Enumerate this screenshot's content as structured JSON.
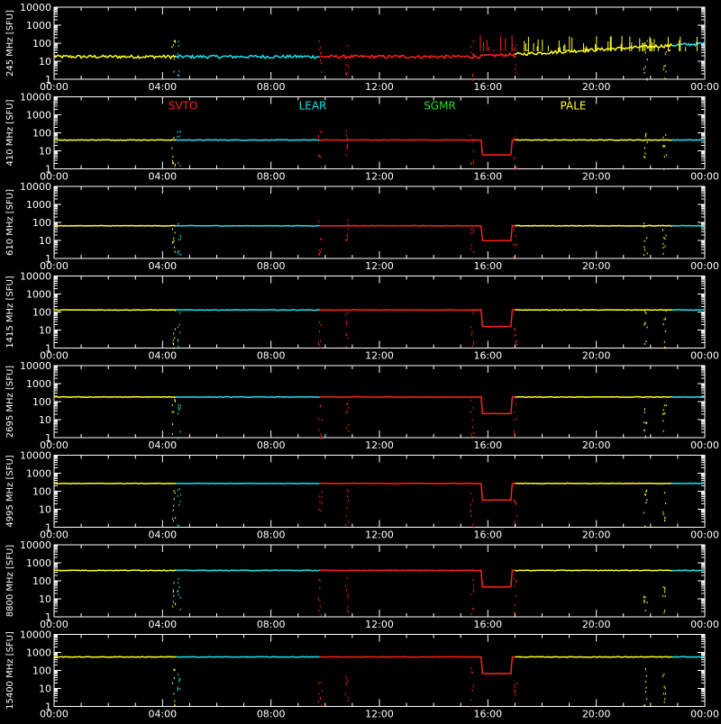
{
  "chart_data": {
    "type": "scatter",
    "y_scale": "log",
    "ylim": [
      1,
      10000
    ],
    "xlim_hours": [
      0,
      24
    ],
    "x_tick_labels": [
      "00:00",
      "04:00",
      "08:00",
      "12:00",
      "16:00",
      "20:00",
      "00:00"
    ],
    "y_tick_labels": [
      "1",
      "10",
      "100",
      "1000",
      "10000"
    ],
    "legend": [
      {
        "name": "SVTO",
        "color": "#ff2020"
      },
      {
        "name": "LEAR",
        "color": "#20e0e8"
      },
      {
        "name": "SGMR",
        "color": "#20e020"
      },
      {
        "name": "PALE",
        "color": "#ffff20"
      }
    ],
    "panels": [
      {
        "ylabel": "245 MHz [SFU]",
        "baseline": 18
      },
      {
        "ylabel": "410 MHz [SFU]",
        "baseline": 40
      },
      {
        "ylabel": "610 MHz [SFU]",
        "baseline": 65
      },
      {
        "ylabel": "1415 MHz [SFU]",
        "baseline": 130
      },
      {
        "ylabel": "2695 MHz [SFU]",
        "baseline": 180
      },
      {
        "ylabel": "4995 MHz [SFU]",
        "baseline": 270
      },
      {
        "ylabel": "8800 MHz [SFU]",
        "baseline": 380
      },
      {
        "ylabel": "15400 MHz [SFU]",
        "baseline": 560
      }
    ],
    "station_segments": [
      {
        "station": "PALE",
        "from_hour": 0.0,
        "to_hour": 4.5
      },
      {
        "station": "LEAR",
        "from_hour": 4.5,
        "to_hour": 9.8
      },
      {
        "station": "SVTO",
        "from_hour": 9.8,
        "to_hour": 17.0
      },
      {
        "station": "PALE",
        "from_hour": 17.0,
        "to_hour": 22.8
      },
      {
        "station": "LEAR",
        "from_hour": 22.8,
        "to_hour": 24.0
      }
    ]
  }
}
